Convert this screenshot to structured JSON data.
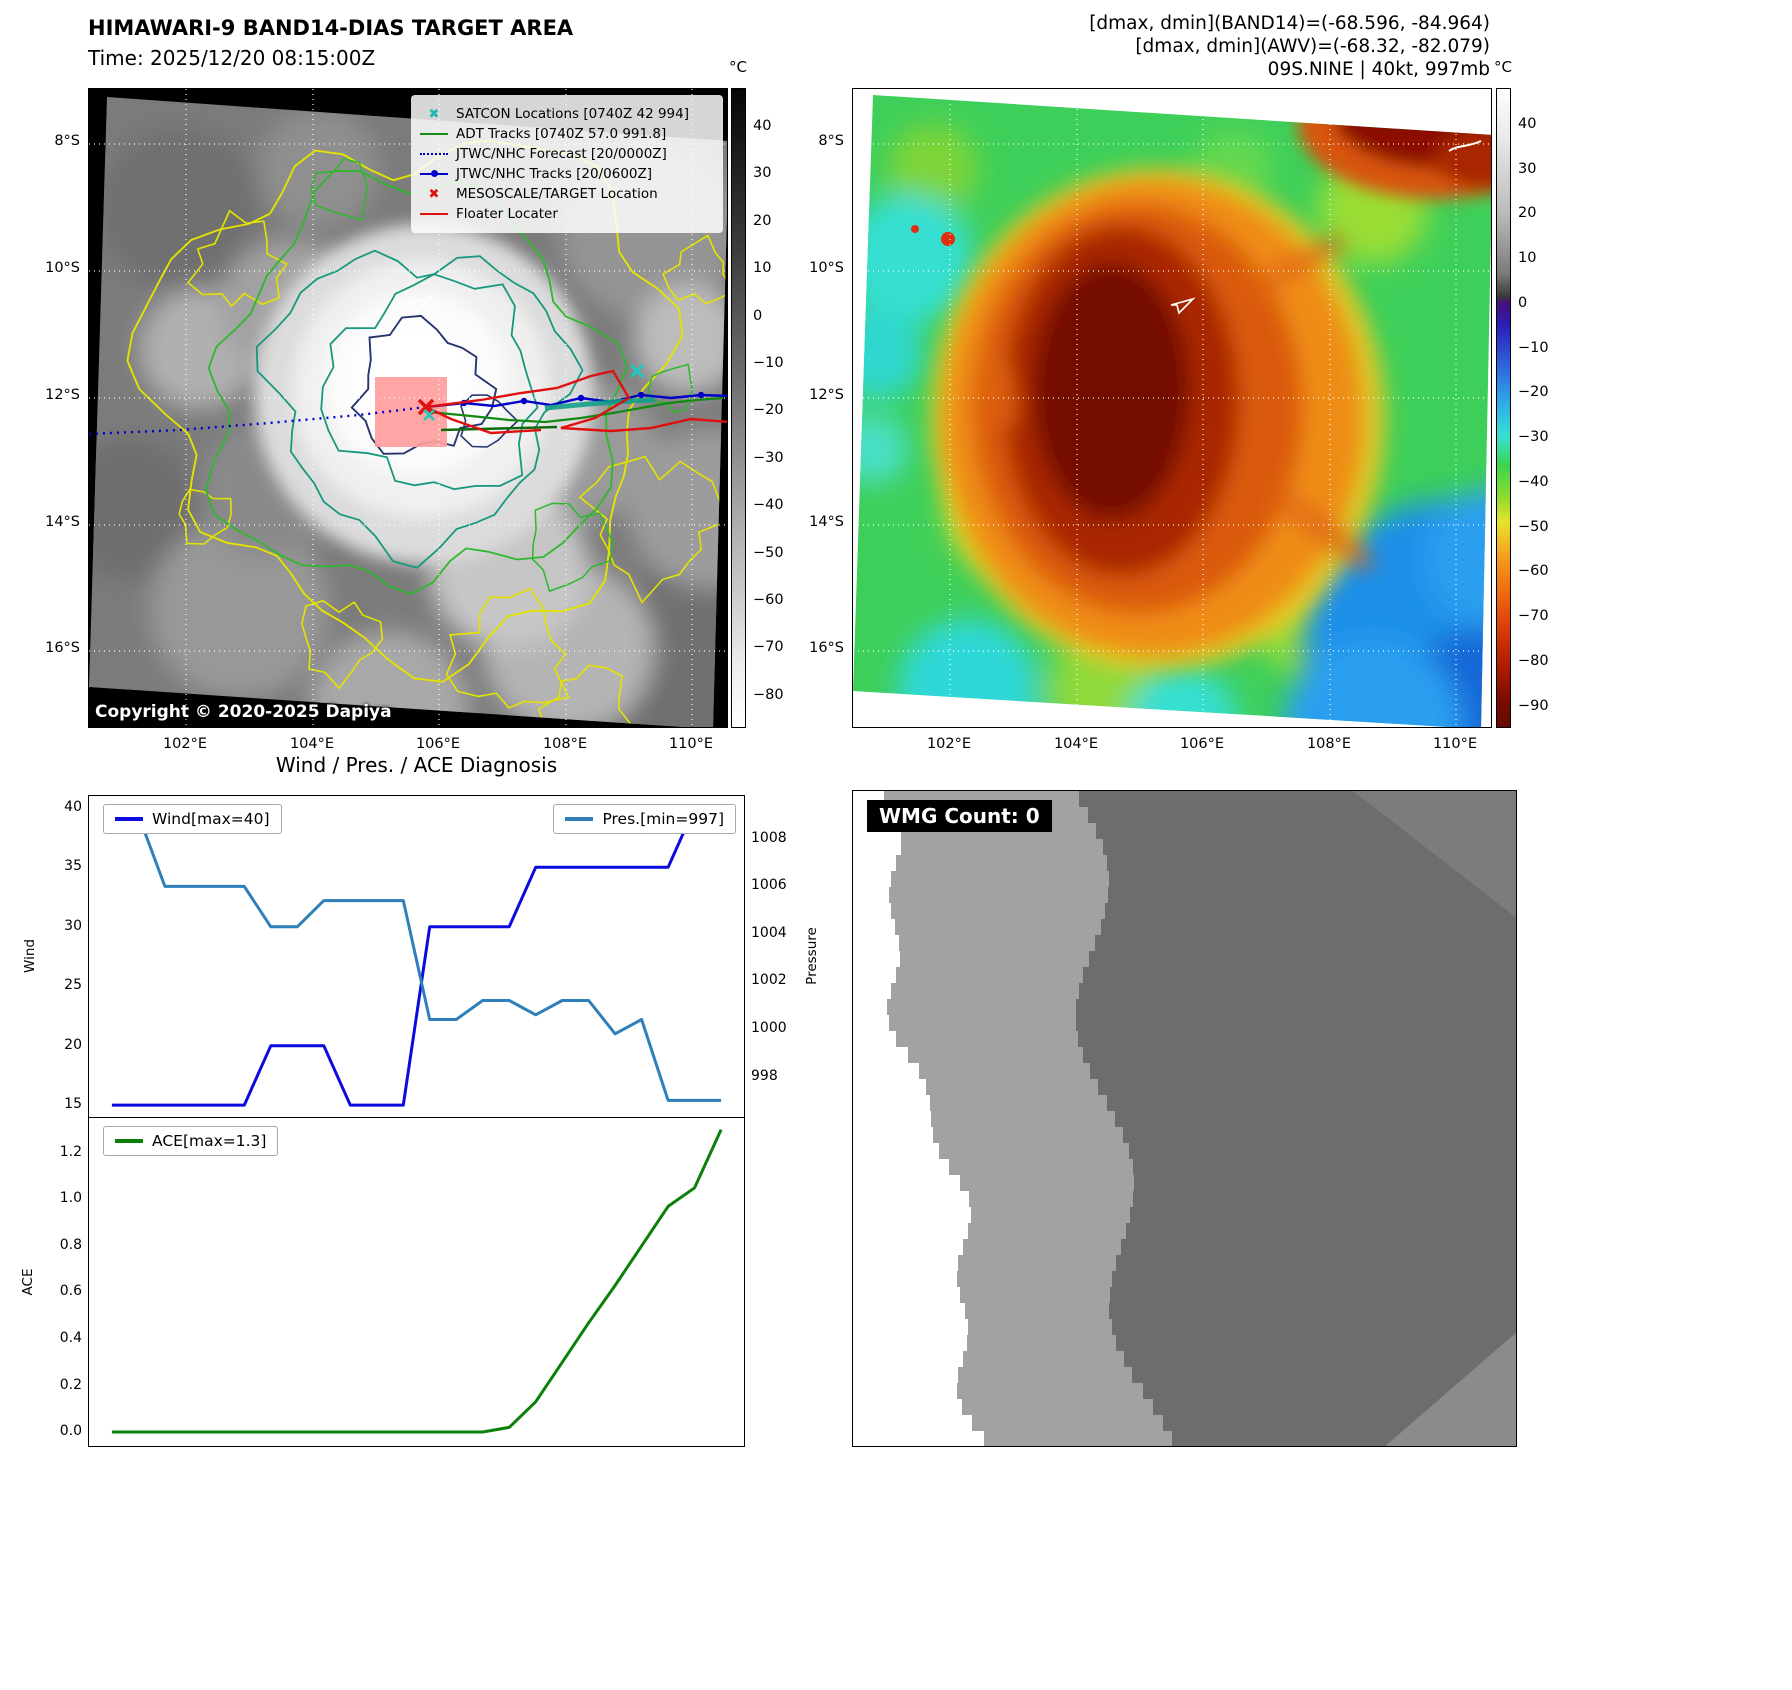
{
  "top_left": {
    "title": "HIMAWARI-9 BAND14-DIAS TARGET AREA",
    "subtitle": "Time: 2025/12/20 08:15:00Z",
    "copyright": "Copyright © 2020-2025 Dapiya",
    "colorbar_unit": "°C",
    "colorbar_ticks": [
      40,
      30,
      20,
      10,
      0,
      -10,
      -20,
      -30,
      -40,
      -50,
      -60,
      -70,
      -80
    ],
    "lat_ticks": [
      "8°S",
      "10°S",
      "12°S",
      "14°S",
      "16°S"
    ],
    "lon_ticks": [
      "102°E",
      "104°E",
      "106°E",
      "108°E",
      "110°E"
    ],
    "legend": [
      {
        "label": "SATCON Locations [0740Z 42 994]",
        "marker": "x",
        "color": "#1fb8ae"
      },
      {
        "label": "ADT Tracks [0740Z 57.0 991.8]",
        "marker": "line",
        "color": "#1a8a1a"
      },
      {
        "label": "JTWC/NHC Forecast [20/0000Z]",
        "marker": "dotted",
        "color": "#0000cc"
      },
      {
        "label": "JTWC/NHC Tracks [20/0600Z]",
        "marker": "line-dot",
        "color": "#0000cc"
      },
      {
        "label": "MESOSCALE/TARGET Location",
        "marker": "x",
        "color": "#dd1111"
      },
      {
        "label": "Floater Locater",
        "marker": "line",
        "color": "#dd1111"
      }
    ]
  },
  "top_right": {
    "header_line1": "[dmax, dmin](BAND14)=(-68.596, -84.964)",
    "header_line2": "[dmax, dmin](AWV)=(-68.32, -82.079)",
    "header_line3": "09S.NINE | 40kt, 997mb",
    "colorbar_unit": "°C",
    "colorbar_ticks": [
      40,
      30,
      20,
      10,
      0,
      -10,
      -20,
      -30,
      -40,
      -50,
      -60,
      -70,
      -80,
      -90
    ],
    "lat_ticks": [
      "8°S",
      "10°S",
      "12°S",
      "14°S",
      "16°S"
    ],
    "lon_ticks": [
      "102°E",
      "104°E",
      "106°E",
      "108°E",
      "110°E"
    ]
  },
  "bottom_left": {
    "title": "Wind / Pres. / ACE Diagnosis"
  },
  "bottom_right": {
    "wmg_label": "WMG Count: 0"
  },
  "chart_data": [
    {
      "type": "line",
      "title": "Wind / Pres. / ACE Diagnosis",
      "x": [
        0,
        1,
        2,
        3,
        4,
        5,
        6,
        7,
        8,
        9,
        10,
        11,
        12,
        13,
        14,
        15,
        16,
        17,
        18,
        19,
        20,
        21,
        22,
        23
      ],
      "ylabel_left": "Wind",
      "ylabel_right": "Pressure",
      "ylim_left": [
        14,
        41
      ],
      "ylim_right": [
        996.3,
        1009.8
      ],
      "yticks_left": [
        15,
        20,
        25,
        30,
        35,
        40
      ],
      "yticks_right": [
        998,
        1000,
        1002,
        1004,
        1006,
        1008
      ],
      "legend_position": "upper-left and upper-right",
      "series": [
        {
          "name": "Wind[max=40]",
          "axis": "left",
          "color": "#0b0be0",
          "values": [
            15,
            15,
            15,
            15,
            15,
            15,
            20,
            20,
            20,
            15,
            15,
            15,
            30,
            30,
            30,
            30,
            35,
            35,
            35,
            35,
            35,
            35,
            40,
            40
          ]
        },
        {
          "name": "Pres.[min=997]",
          "axis": "right",
          "color": "#2f7fb8",
          "values": [
            1009,
            1009,
            1006,
            1006,
            1006,
            1006,
            1004.3,
            1004.3,
            1005.4,
            1005.4,
            1005.4,
            1005.4,
            1000.4,
            1000.4,
            1001.2,
            1001.2,
            1000.6,
            1001.2,
            1001.2,
            999.8,
            1000.4,
            997,
            997,
            997
          ]
        }
      ]
    },
    {
      "type": "line",
      "title": "",
      "x": [
        0,
        1,
        2,
        3,
        4,
        5,
        6,
        7,
        8,
        9,
        10,
        11,
        12,
        13,
        14,
        15,
        16,
        17,
        18,
        19,
        20,
        21,
        22,
        23
      ],
      "ylabel": "ACE",
      "ylim": [
        -0.06,
        1.35
      ],
      "yticks": [
        "0.0",
        "0.2",
        "0.4",
        "0.6",
        "0.8",
        "1.0",
        "1.2"
      ],
      "legend_position": "upper-left",
      "series": [
        {
          "name": "ACE[max=1.3]",
          "color": "#0a800a",
          "values": [
            0,
            0,
            0,
            0,
            0,
            0,
            0,
            0,
            0,
            0,
            0,
            0,
            0,
            0,
            0,
            0.02,
            0.13,
            0.3,
            0.47,
            0.63,
            0.8,
            0.97,
            1.05,
            1.3
          ]
        }
      ]
    }
  ]
}
